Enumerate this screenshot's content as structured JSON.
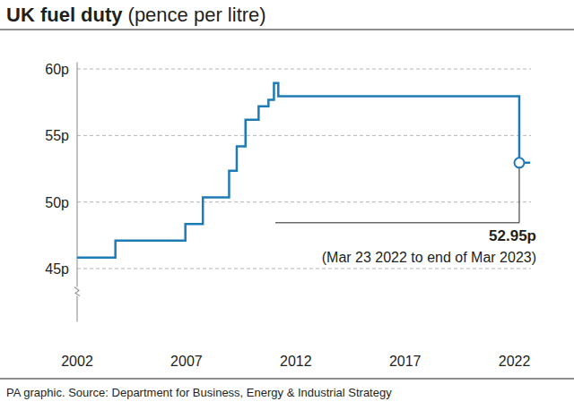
{
  "chart_data": {
    "type": "line",
    "title": "UK fuel duty",
    "subtitle": "(pence per litre)",
    "source": "PA graphic. Source: Department for Business, Energy & Industrial Strategy",
    "x": [
      2002,
      2003.75,
      2006.95,
      2007.75,
      2008.95,
      2009.3,
      2009.7,
      2010.3,
      2010.75,
      2011.0,
      2011.2,
      2022.22,
      2022.72
    ],
    "series": [
      {
        "color": "#1f7bb6",
        "line_style": "step",
        "values": [
          45.82,
          47.1,
          48.35,
          50.35,
          52.35,
          54.19,
          56.19,
          57.19,
          57.68,
          58.95,
          57.95,
          52.95,
          52.95
        ]
      }
    ],
    "xlim": [
      2002,
      2023
    ],
    "xticks": [
      2002,
      2007,
      2012,
      2017,
      2022
    ],
    "ylim": [
      41,
      60.5
    ],
    "yticks": [
      {
        "value": 45,
        "label": "45p"
      },
      {
        "value": 50,
        "label": "50p"
      },
      {
        "value": 55,
        "label": "55p"
      },
      {
        "value": 60,
        "label": "60p"
      }
    ],
    "grid": true,
    "annotations": [
      {
        "x": 2022.22,
        "y": 52.95,
        "text": "52.95p",
        "subtext": "(Mar 23 2022 to end of Mar 2023)"
      }
    ]
  }
}
